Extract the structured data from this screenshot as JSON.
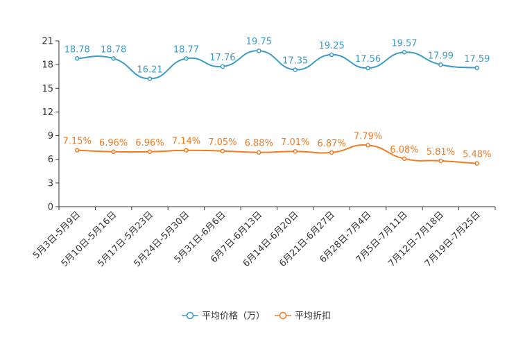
{
  "chart_data": {
    "type": "line",
    "title": "",
    "xlabel": "",
    "ylabel": "",
    "ylim": [
      0,
      21
    ],
    "yticks": [
      0,
      3,
      6,
      9,
      12,
      15,
      18,
      21
    ],
    "categories": [
      "5月3日-5月9日",
      "5月10日-5月16日",
      "5月17日-5月23日",
      "5月24日-5月30日",
      "5月31日-6月6日",
      "6月7日-6月13日",
      "6月14日-6月20日",
      "6月21日-6月27日",
      "6月28日-7月4日",
      "7月5日-7月11日",
      "7月12日-7月18日",
      "7月19日-7月25日"
    ],
    "series": [
      {
        "name": "平均价格（万）",
        "color": "#3a9bc9",
        "values": [
          18.78,
          18.78,
          16.21,
          18.77,
          17.76,
          19.75,
          17.35,
          19.25,
          17.56,
          19.57,
          17.99,
          17.59
        ],
        "labels": [
          "18.78",
          "18.78",
          "16.21",
          "18.77",
          "17.76",
          "19.75",
          "17.35",
          "19.25",
          "17.56",
          "19.57",
          "17.99",
          "17.59"
        ]
      },
      {
        "name": "平均折扣",
        "color": "#f47a20",
        "values": [
          7.15,
          6.96,
          6.96,
          7.14,
          7.05,
          6.88,
          7.01,
          6.87,
          7.79,
          6.08,
          5.81,
          5.48
        ],
        "labels": [
          "7.15%",
          "6.96%",
          "6.96%",
          "7.14%",
          "7.05%",
          "6.88%",
          "7.01%",
          "6.87%",
          "7.79%",
          "6.08%",
          "5.81%",
          "5.48%"
        ]
      }
    ],
    "legend_position": "bottom-center",
    "grid": false
  }
}
